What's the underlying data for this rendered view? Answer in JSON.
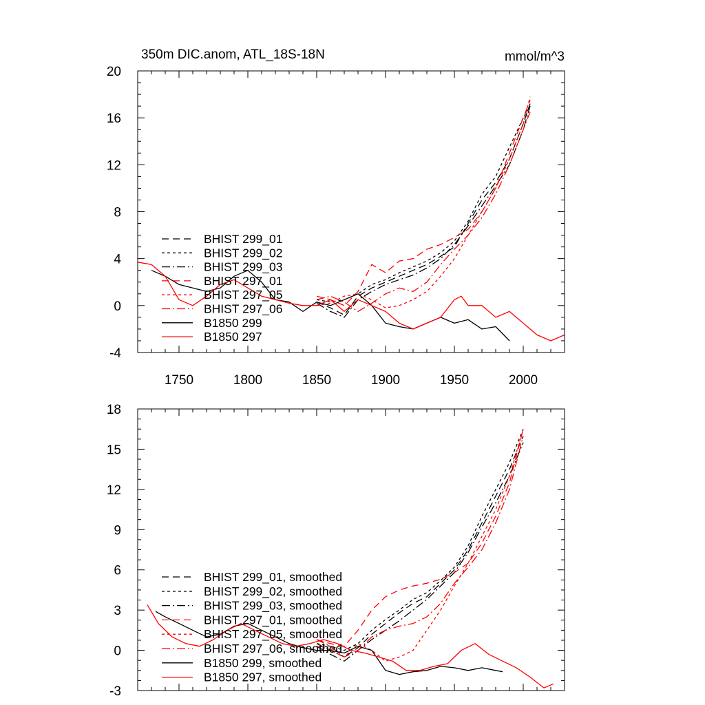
{
  "chart_data": [
    {
      "type": "line",
      "title": "350m DIC.anom, ATL_18S-18N",
      "units": "mmol/m^3",
      "xlim": [
        1720,
        2030
      ],
      "ylim": [
        -4,
        20
      ],
      "yticks": [
        -4,
        0,
        4,
        8,
        12,
        16,
        20
      ],
      "xticks": [
        1750,
        1800,
        1850,
        1900,
        1950,
        2000
      ],
      "legend_position": "lower-left",
      "series": [
        {
          "name": "BHIST 299_01",
          "color": "#000000",
          "dash": "10,6",
          "x": [
            1850,
            1860,
            1870,
            1880,
            1890,
            1900,
            1910,
            1920,
            1930,
            1940,
            1950,
            1960,
            1970,
            1980,
            1990,
            2000,
            2005
          ],
          "y": [
            0.3,
            -0.2,
            -0.8,
            0.8,
            1.5,
            2.0,
            2.5,
            3.0,
            3.5,
            4.2,
            5.0,
            7.0,
            9.0,
            10.5,
            12.5,
            15.5,
            17.2
          ]
        },
        {
          "name": "BHIST 299_02",
          "color": "#000000",
          "dash": "4,4",
          "x": [
            1850,
            1860,
            1870,
            1880,
            1890,
            1900,
            1910,
            1920,
            1930,
            1940,
            1950,
            1960,
            1970,
            1980,
            1990,
            2000,
            2005
          ],
          "y": [
            0.5,
            0.3,
            0.5,
            1.0,
            1.8,
            2.2,
            2.8,
            3.3,
            3.8,
            4.5,
            5.5,
            7.2,
            9.5,
            11.0,
            13.5,
            16.0,
            17.0
          ]
        },
        {
          "name": "BHIST 299_03",
          "color": "#000000",
          "dash": "12,4,2,4",
          "x": [
            1850,
            1860,
            1870,
            1880,
            1890,
            1900,
            1910,
            1920,
            1930,
            1940,
            1950,
            1960,
            1970,
            1980,
            1990,
            2000,
            2005
          ],
          "y": [
            0.2,
            -0.5,
            -1.0,
            0.5,
            1.2,
            1.8,
            2.2,
            2.6,
            3.2,
            4.0,
            5.2,
            6.8,
            8.5,
            10.2,
            12.0,
            15.0,
            17.0
          ]
        },
        {
          "name": "BHIST 297_01",
          "color": "#ff0000",
          "dash": "10,6",
          "x": [
            1850,
            1860,
            1870,
            1880,
            1890,
            1900,
            1910,
            1920,
            1930,
            1940,
            1950,
            1960,
            1970,
            1980,
            1990,
            2000,
            2005
          ],
          "y": [
            0.8,
            0.5,
            0.0,
            1.2,
            3.5,
            2.8,
            3.8,
            4.0,
            4.8,
            5.2,
            5.8,
            6.5,
            8.0,
            10.0,
            13.0,
            16.0,
            17.5
          ]
        },
        {
          "name": "BHIST 297_05",
          "color": "#ff0000",
          "dash": "4,4",
          "x": [
            1850,
            1860,
            1870,
            1880,
            1890,
            1900,
            1910,
            1920,
            1930,
            1940,
            1950,
            1960,
            1970,
            1980,
            1990,
            2000,
            2005
          ],
          "y": [
            0.0,
            0.2,
            0.8,
            1.0,
            0.5,
            -0.2,
            0.0,
            0.5,
            1.2,
            2.5,
            4.0,
            6.0,
            8.0,
            10.0,
            12.5,
            15.5,
            17.8
          ]
        },
        {
          "name": "BHIST 297_06",
          "color": "#ff0000",
          "dash": "12,4,2,4",
          "x": [
            1850,
            1860,
            1870,
            1880,
            1890,
            1900,
            1910,
            1920,
            1930,
            1940,
            1950,
            1960,
            1970,
            1980,
            1990,
            2000,
            2005
          ],
          "y": [
            0.5,
            0.8,
            0.3,
            -0.5,
            0.2,
            1.0,
            1.5,
            1.2,
            2.0,
            3.5,
            4.8,
            6.0,
            7.5,
            9.5,
            12.0,
            15.0,
            16.5
          ]
        },
        {
          "name": "B1850 299",
          "color": "#000000",
          "dash": "",
          "x": [
            1730,
            1740,
            1750,
            1760,
            1770,
            1780,
            1790,
            1800,
            1810,
            1820,
            1830,
            1840,
            1850,
            1860,
            1870,
            1880,
            1890,
            1900,
            1910,
            1920,
            1930,
            1940,
            1950,
            1960,
            1970,
            1980,
            1990
          ],
          "y": [
            3.0,
            2.5,
            1.8,
            1.5,
            1.2,
            1.5,
            2.5,
            3.0,
            2.0,
            0.5,
            0.3,
            -0.5,
            0.3,
            0.0,
            0.5,
            1.0,
            0.0,
            -1.5,
            -1.8,
            -2.0,
            -1.5,
            -1.0,
            -1.5,
            -1.2,
            -2.0,
            -1.8,
            -3.0
          ]
        },
        {
          "name": "B1850 297",
          "color": "#ff0000",
          "dash": "",
          "x": [
            1720,
            1730,
            1740,
            1750,
            1760,
            1770,
            1780,
            1790,
            1800,
            1810,
            1820,
            1830,
            1840,
            1850,
            1860,
            1870,
            1880,
            1890,
            1900,
            1910,
            1920,
            1930,
            1940,
            1950,
            1955,
            1960,
            1970,
            1980,
            1990,
            2000,
            2010,
            2020,
            2030
          ],
          "y": [
            3.7,
            3.5,
            2.5,
            0.5,
            0.0,
            0.8,
            1.8,
            2.2,
            1.5,
            0.8,
            0.5,
            0.2,
            0.0,
            0.0,
            0.5,
            -0.5,
            0.5,
            0.0,
            -0.5,
            -1.5,
            -2.0,
            -1.5,
            -1.0,
            0.5,
            0.8,
            0.0,
            0.0,
            -1.0,
            -0.5,
            -1.5,
            -2.5,
            -3.0,
            -2.5
          ]
        }
      ]
    },
    {
      "type": "line",
      "title": "",
      "xlim": [
        1720,
        2030
      ],
      "ylim": [
        -3,
        18
      ],
      "yticks": [
        -3,
        0,
        3,
        6,
        9,
        12,
        15,
        18
      ],
      "xticks": [
        1750,
        1800,
        1850,
        1900,
        1950,
        2000
      ],
      "legend_position": "lower-left",
      "series": [
        {
          "name": "BHIST 299_01, smoothed",
          "color": "#000000",
          "dash": "10,6",
          "x": [
            1850,
            1860,
            1870,
            1880,
            1890,
            1900,
            1910,
            1920,
            1930,
            1940,
            1950,
            1960,
            1970,
            1980,
            1990,
            2000
          ],
          "y": [
            0.5,
            0.0,
            -0.5,
            0.2,
            1.2,
            2.0,
            2.8,
            3.5,
            4.0,
            5.0,
            6.0,
            7.5,
            9.5,
            11.5,
            13.5,
            16.0
          ]
        },
        {
          "name": "BHIST 299_02, smoothed",
          "color": "#000000",
          "dash": "4,4",
          "x": [
            1850,
            1860,
            1870,
            1880,
            1890,
            1900,
            1910,
            1920,
            1930,
            1940,
            1950,
            1960,
            1970,
            1980,
            1990,
            2000
          ],
          "y": [
            0.5,
            0.3,
            0.0,
            0.5,
            1.5,
            2.3,
            3.0,
            3.8,
            4.3,
            5.2,
            6.2,
            7.8,
            10.0,
            12.0,
            14.0,
            16.5
          ]
        },
        {
          "name": "BHIST 299_03, smoothed",
          "color": "#000000",
          "dash": "12,4,2,4",
          "x": [
            1850,
            1860,
            1870,
            1880,
            1890,
            1900,
            1910,
            1920,
            1930,
            1940,
            1950,
            1960,
            1970,
            1980,
            1990,
            2000
          ],
          "y": [
            0.3,
            -0.3,
            -0.8,
            0.0,
            0.8,
            1.5,
            2.2,
            3.0,
            3.8,
            4.8,
            5.8,
            7.3,
            9.2,
            11.0,
            13.0,
            15.5
          ]
        },
        {
          "name": "BHIST 297_01, smoothed",
          "color": "#ff0000",
          "dash": "10,6",
          "x": [
            1850,
            1860,
            1870,
            1880,
            1890,
            1900,
            1910,
            1920,
            1930,
            1940,
            1950,
            1960,
            1970,
            1980,
            1990,
            2000
          ],
          "y": [
            0.8,
            0.5,
            0.3,
            1.5,
            3.0,
            4.0,
            4.5,
            4.8,
            5.0,
            5.3,
            5.8,
            6.5,
            8.0,
            10.0,
            12.5,
            16.5
          ]
        },
        {
          "name": "BHIST 297_05, smoothed",
          "color": "#ff0000",
          "dash": "4,4",
          "x": [
            1850,
            1860,
            1870,
            1880,
            1890,
            1900,
            1910,
            1920,
            1930,
            1940,
            1950,
            1960,
            1970,
            1980,
            1990,
            2000
          ],
          "y": [
            0.3,
            0.0,
            -0.5,
            0.5,
            0.0,
            -0.8,
            -0.5,
            0.0,
            1.5,
            3.0,
            4.8,
            6.5,
            8.5,
            10.5,
            13.0,
            16.5
          ]
        },
        {
          "name": "BHIST 297_06, smoothed",
          "color": "#ff0000",
          "dash": "12,4,2,4",
          "x": [
            1850,
            1860,
            1870,
            1880,
            1890,
            1900,
            1910,
            1920,
            1930,
            1940,
            1950,
            1960,
            1970,
            1980,
            1990,
            2000
          ],
          "y": [
            0.8,
            0.3,
            -0.5,
            0.0,
            1.0,
            1.5,
            1.8,
            2.0,
            2.5,
            3.5,
            5.0,
            6.2,
            7.5,
            9.5,
            12.0,
            16.0
          ]
        },
        {
          "name": "B1850 299, smoothed",
          "color": "#000000",
          "dash": "",
          "x": [
            1733,
            1740,
            1750,
            1760,
            1770,
            1780,
            1790,
            1800,
            1810,
            1820,
            1830,
            1840,
            1850,
            1860,
            1870,
            1880,
            1890,
            1900,
            1910,
            1920,
            1930,
            1940,
            1950,
            1960,
            1970,
            1980,
            1985
          ],
          "y": [
            2.9,
            2.5,
            2.0,
            1.5,
            1.0,
            1.2,
            1.8,
            2.0,
            1.5,
            1.0,
            0.5,
            0.2,
            0.0,
            0.0,
            -0.2,
            0.3,
            0.0,
            -1.5,
            -1.8,
            -1.6,
            -1.5,
            -1.2,
            -1.3,
            -1.5,
            -1.3,
            -1.5,
            -1.6
          ]
        },
        {
          "name": "B1850 297, smoothed",
          "color": "#ff0000",
          "dash": "",
          "x": [
            1727,
            1735,
            1745,
            1755,
            1765,
            1775,
            1785,
            1795,
            1805,
            1815,
            1825,
            1835,
            1845,
            1855,
            1865,
            1875,
            1885,
            1895,
            1905,
            1915,
            1925,
            1935,
            1945,
            1955,
            1965,
            1975,
            1985,
            1995,
            2005,
            2015,
            2022
          ],
          "y": [
            3.4,
            2.0,
            1.0,
            0.5,
            0.3,
            0.8,
            1.5,
            2.0,
            1.5,
            1.0,
            0.5,
            0.3,
            0.5,
            0.8,
            0.5,
            0.0,
            -0.2,
            -0.5,
            -0.8,
            -1.5,
            -1.5,
            -1.2,
            -1.0,
            0.0,
            0.5,
            -0.3,
            -0.8,
            -1.3,
            -2.0,
            -2.8,
            -2.5
          ]
        }
      ]
    }
  ]
}
